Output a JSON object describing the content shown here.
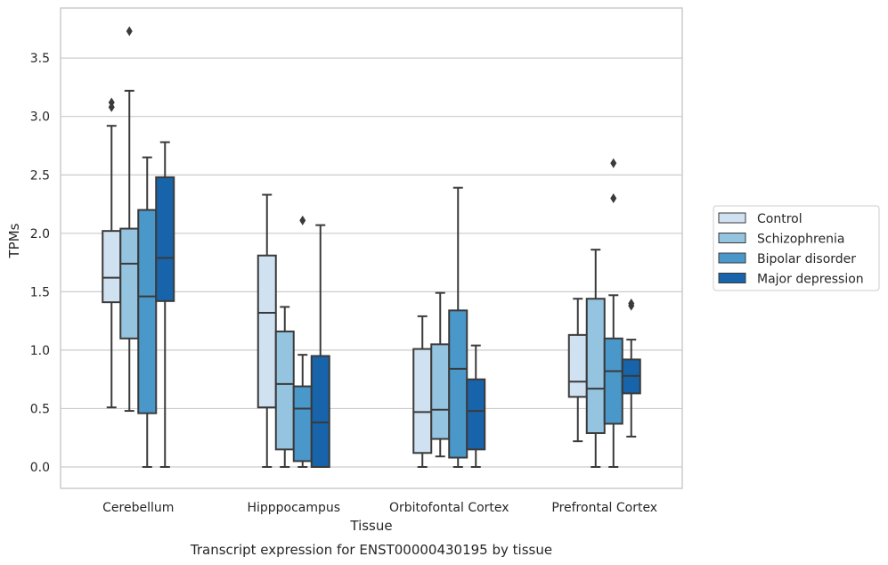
{
  "chart_data": {
    "type": "box",
    "title": "",
    "caption": "Transcript expression for ENST00000430195 by tissue",
    "xlabel": "Tissue",
    "ylabel": "TPMs",
    "ylim": [
      -0.18,
      3.9
    ],
    "yticks": [
      0.0,
      0.5,
      1.0,
      1.5,
      2.0,
      2.5,
      3.0,
      3.5
    ],
    "ytick_labels": [
      "0.0",
      "0.5",
      "1.0",
      "1.5",
      "2.0",
      "2.5",
      "3.0",
      "3.5"
    ],
    "grid": "y",
    "legend_position": "outside-right",
    "categories": [
      "Cerebellum",
      "Hipppocampus",
      "Orbitofontal Cortex",
      "Prefrontal Cortex"
    ],
    "series": [
      {
        "name": "Control",
        "color": "#d0e1f2",
        "boxes": [
          {
            "whislo": 0.51,
            "q1": 1.41,
            "med": 1.62,
            "q3": 2.02,
            "whishi": 2.92,
            "fliers": [
              3.08,
              3.12
            ]
          },
          {
            "whislo": 0.0,
            "q1": 0.51,
            "med": 1.32,
            "q3": 1.81,
            "whishi": 2.33,
            "fliers": []
          },
          {
            "whislo": 0.0,
            "q1": 0.12,
            "med": 0.47,
            "q3": 1.01,
            "whishi": 1.29,
            "fliers": []
          },
          {
            "whislo": 0.22,
            "q1": 0.6,
            "med": 0.73,
            "q3": 1.13,
            "whishi": 1.44,
            "fliers": []
          }
        ]
      },
      {
        "name": "Schizophrenia",
        "color": "#94c4df",
        "boxes": [
          {
            "whislo": 0.48,
            "q1": 1.1,
            "med": 1.74,
            "q3": 2.04,
            "whishi": 3.22,
            "fliers": [
              3.73
            ]
          },
          {
            "whislo": 0.0,
            "q1": 0.15,
            "med": 0.71,
            "q3": 1.16,
            "whishi": 1.37,
            "fliers": []
          },
          {
            "whislo": 0.09,
            "q1": 0.24,
            "med": 0.49,
            "q3": 1.05,
            "whishi": 1.49,
            "fliers": []
          },
          {
            "whislo": 0.0,
            "q1": 0.29,
            "med": 0.67,
            "q3": 1.44,
            "whishi": 1.86,
            "fliers": []
          }
        ]
      },
      {
        "name": "Bipolar disorder",
        "color": "#4a98c9",
        "boxes": [
          {
            "whislo": 0.0,
            "q1": 0.46,
            "med": 1.46,
            "q3": 2.2,
            "whishi": 2.65,
            "fliers": []
          },
          {
            "whislo": 0.0,
            "q1": 0.05,
            "med": 0.5,
            "q3": 0.69,
            "whishi": 0.96,
            "fliers": [
              2.11
            ]
          },
          {
            "whislo": 0.0,
            "q1": 0.08,
            "med": 0.84,
            "q3": 1.34,
            "whishi": 2.39,
            "fliers": []
          },
          {
            "whislo": 0.0,
            "q1": 0.37,
            "med": 0.82,
            "q3": 1.1,
            "whishi": 1.47,
            "fliers": [
              2.3,
              2.6
            ]
          }
        ]
      },
      {
        "name": "Major depression",
        "color": "#1764ab",
        "boxes": [
          {
            "whislo": 0.0,
            "q1": 1.42,
            "med": 1.79,
            "q3": 2.48,
            "whishi": 2.78,
            "fliers": []
          },
          {
            "whislo": 0.0,
            "q1": 0.0,
            "med": 0.38,
            "q3": 0.95,
            "whishi": 2.07,
            "fliers": []
          },
          {
            "whislo": 0.0,
            "q1": 0.15,
            "med": 0.48,
            "q3": 0.75,
            "whishi": 1.04,
            "fliers": []
          },
          {
            "whislo": 0.26,
            "q1": 0.63,
            "med": 0.78,
            "q3": 0.92,
            "whishi": 1.09,
            "fliers": [
              1.38,
              1.4
            ]
          }
        ]
      }
    ]
  }
}
